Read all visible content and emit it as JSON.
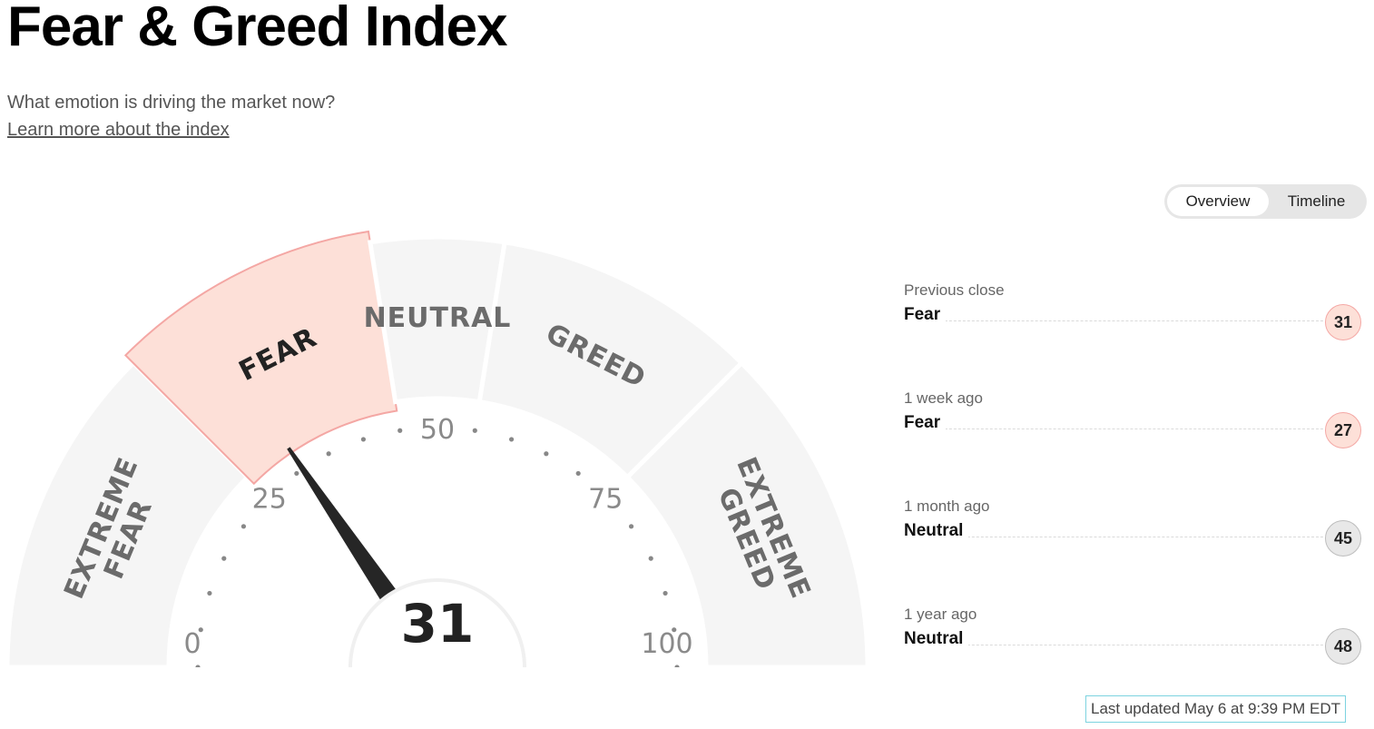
{
  "header": {
    "title": "Fear & Greed Index",
    "subtitle": "What emotion is driving the market now?",
    "learn_link": "Learn more about the index"
  },
  "view_toggle": {
    "options": [
      "Overview",
      "Timeline"
    ],
    "selected": "Overview"
  },
  "gauge": {
    "score": "31",
    "score_value": 31,
    "active_segment": "FEAR",
    "segments": [
      {
        "lines": [
          "EXTREME",
          "FEAR"
        ],
        "range": [
          0,
          25
        ]
      },
      {
        "lines": [
          "FEAR"
        ],
        "range": [
          25,
          45
        ]
      },
      {
        "lines": [
          "NEUTRAL"
        ],
        "range": [
          45,
          55
        ]
      },
      {
        "lines": [
          "GREED"
        ],
        "range": [
          55,
          75
        ]
      },
      {
        "lines": [
          "EXTREME",
          "GREED"
        ],
        "range": [
          75,
          100
        ]
      }
    ],
    "tick_labels": [
      "0",
      "25",
      "50",
      "75",
      "100"
    ],
    "colors": {
      "segment": "#f5f5f5",
      "active_segment": "#fde0d8",
      "active_border": "#f4a7a4",
      "needle": "#262626"
    }
  },
  "history": [
    {
      "period": "Previous close",
      "rating": "Fear",
      "value": "31",
      "tone": "fear"
    },
    {
      "period": "1 week ago",
      "rating": "Fear",
      "value": "27",
      "tone": "fear"
    },
    {
      "period": "1 month ago",
      "rating": "Neutral",
      "value": "45",
      "tone": "neutral"
    },
    {
      "period": "1 year ago",
      "rating": "Neutral",
      "value": "48",
      "tone": "neutral"
    }
  ],
  "last_updated": "Last updated May 6 at 9:39 PM EDT"
}
